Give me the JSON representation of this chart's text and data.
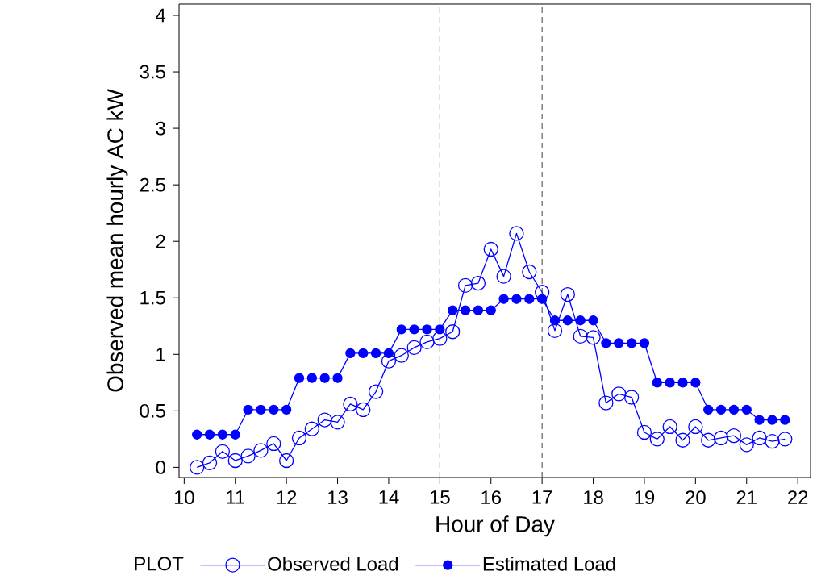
{
  "chart_data": {
    "type": "line",
    "xlabel": "Hour of Day",
    "ylabel": "Observed mean hourly AC  kW",
    "legend_title": "PLOT",
    "legend": "bottom",
    "marker": "circle",
    "x": [
      10.25,
      10.5,
      10.75,
      11,
      11.25,
      11.5,
      11.75,
      12,
      12.25,
      12.5,
      12.75,
      13,
      13.25,
      13.5,
      13.75,
      14,
      14.25,
      14.5,
      14.75,
      15,
      15.25,
      15.5,
      15.75,
      16,
      16.25,
      16.5,
      16.75,
      17,
      17.25,
      17.5,
      17.75,
      18,
      18.25,
      18.5,
      18.75,
      19,
      19.25,
      19.5,
      19.75,
      20,
      20.25,
      20.5,
      20.75,
      21,
      21.25,
      21.5,
      21.75
    ],
    "series": [
      {
        "name": "Observed Load",
        "color": "#0000ff",
        "values": [
          0.0,
          0.04,
          0.14,
          0.06,
          0.1,
          0.15,
          0.21,
          0.06,
          0.26,
          0.34,
          0.42,
          0.4,
          0.56,
          0.51,
          0.67,
          0.94,
          0.99,
          1.06,
          1.11,
          1.14,
          1.2,
          1.61,
          1.63,
          1.93,
          1.69,
          2.07,
          1.73,
          1.55,
          1.21,
          1.53,
          1.16,
          1.15,
          0.57,
          0.65,
          0.62,
          0.31,
          0.25,
          0.36,
          0.24,
          0.36,
          0.24,
          0.26,
          0.28,
          0.2,
          0.26,
          0.23,
          0.25
        ]
      },
      {
        "name": "Estimated Load",
        "color": "#0000ff",
        "values": [
          0.29,
          0.29,
          0.29,
          0.29,
          0.51,
          0.51,
          0.51,
          0.51,
          0.79,
          0.79,
          0.79,
          0.79,
          1.01,
          1.01,
          1.01,
          1.01,
          1.22,
          1.22,
          1.22,
          1.22,
          1.39,
          1.39,
          1.39,
          1.39,
          1.49,
          1.49,
          1.49,
          1.49,
          1.3,
          1.3,
          1.3,
          1.3,
          1.1,
          1.1,
          1.1,
          1.1,
          0.75,
          0.75,
          0.75,
          0.75,
          0.51,
          0.51,
          0.51,
          0.51,
          0.42,
          0.42,
          0.42
        ]
      }
    ],
    "xlim": [
      9.9,
      22.25
    ],
    "ylim": [
      -0.09,
      4.1
    ],
    "xticks": [
      10,
      11,
      12,
      13,
      14,
      15,
      16,
      17,
      18,
      19,
      20,
      21,
      22
    ],
    "yticks": [
      0,
      0.5,
      1,
      1.5,
      2,
      2.5,
      3,
      3.5,
      4
    ],
    "ref_lines": [
      {
        "axis": "x",
        "value": 15,
        "color": "#404040",
        "line_style": "dashed"
      },
      {
        "axis": "x",
        "value": 17,
        "color": "#404040",
        "line_style": "dashed"
      }
    ]
  }
}
